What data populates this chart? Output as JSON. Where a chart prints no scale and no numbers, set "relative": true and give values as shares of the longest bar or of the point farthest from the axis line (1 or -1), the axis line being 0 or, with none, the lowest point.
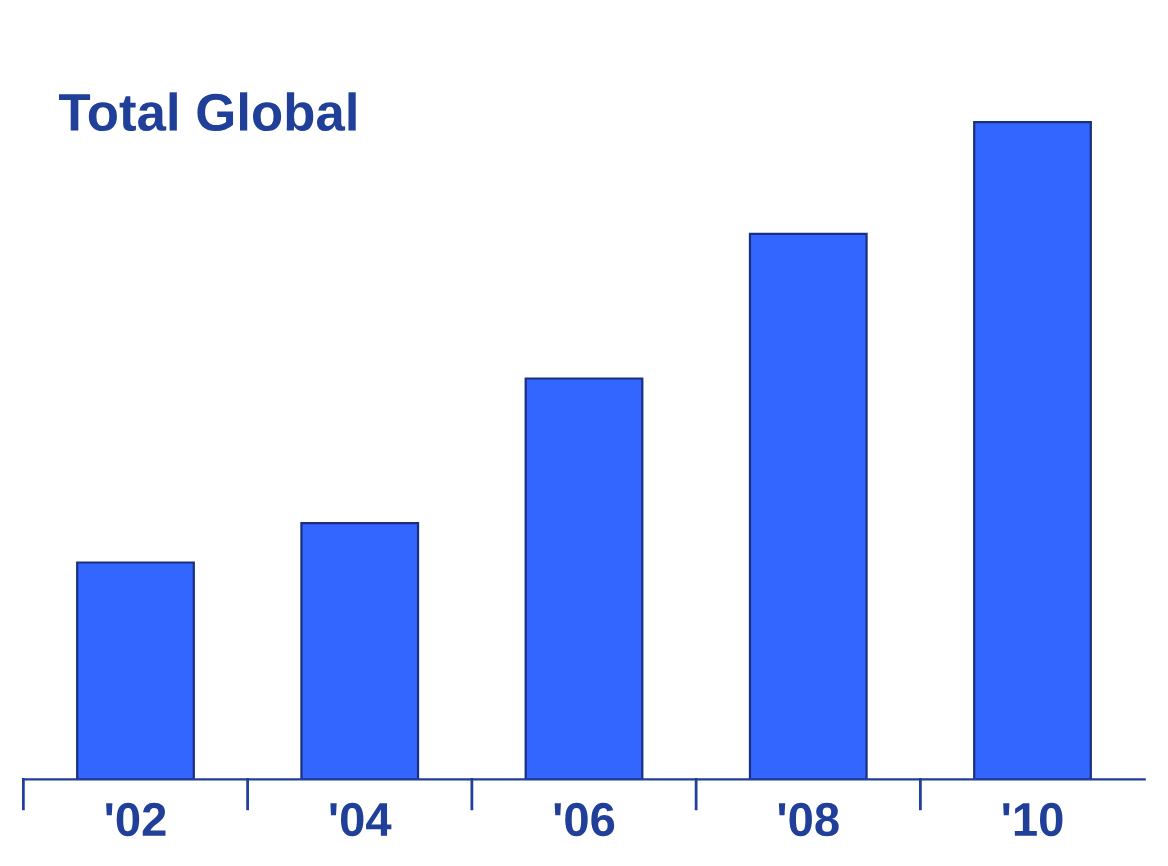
{
  "chart_data": {
    "type": "bar",
    "title": "Total Global",
    "categories": [
      "'02",
      "'04",
      "'06",
      "'08",
      "'10"
    ],
    "values": [
      0.33,
      0.39,
      0.61,
      0.83,
      1.0
    ],
    "color": "#3366ff",
    "relative": true,
    "grid": false,
    "legend": false
  }
}
